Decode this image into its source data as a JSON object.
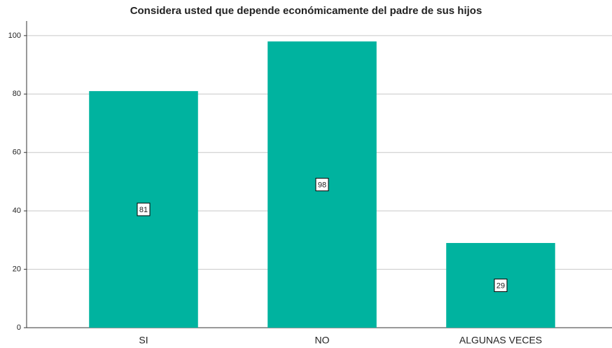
{
  "chart_data": {
    "type": "bar",
    "title": "Considera usted que depende económicamente del padre de sus hijos",
    "categories": [
      "SI",
      "NO",
      "ALGUNAS VECES"
    ],
    "values": [
      81,
      98,
      29
    ],
    "color": "#00b39f",
    "ylim": [
      0,
      105
    ],
    "yticks": [
      0,
      20,
      40,
      60,
      80,
      100
    ],
    "grid": true
  }
}
